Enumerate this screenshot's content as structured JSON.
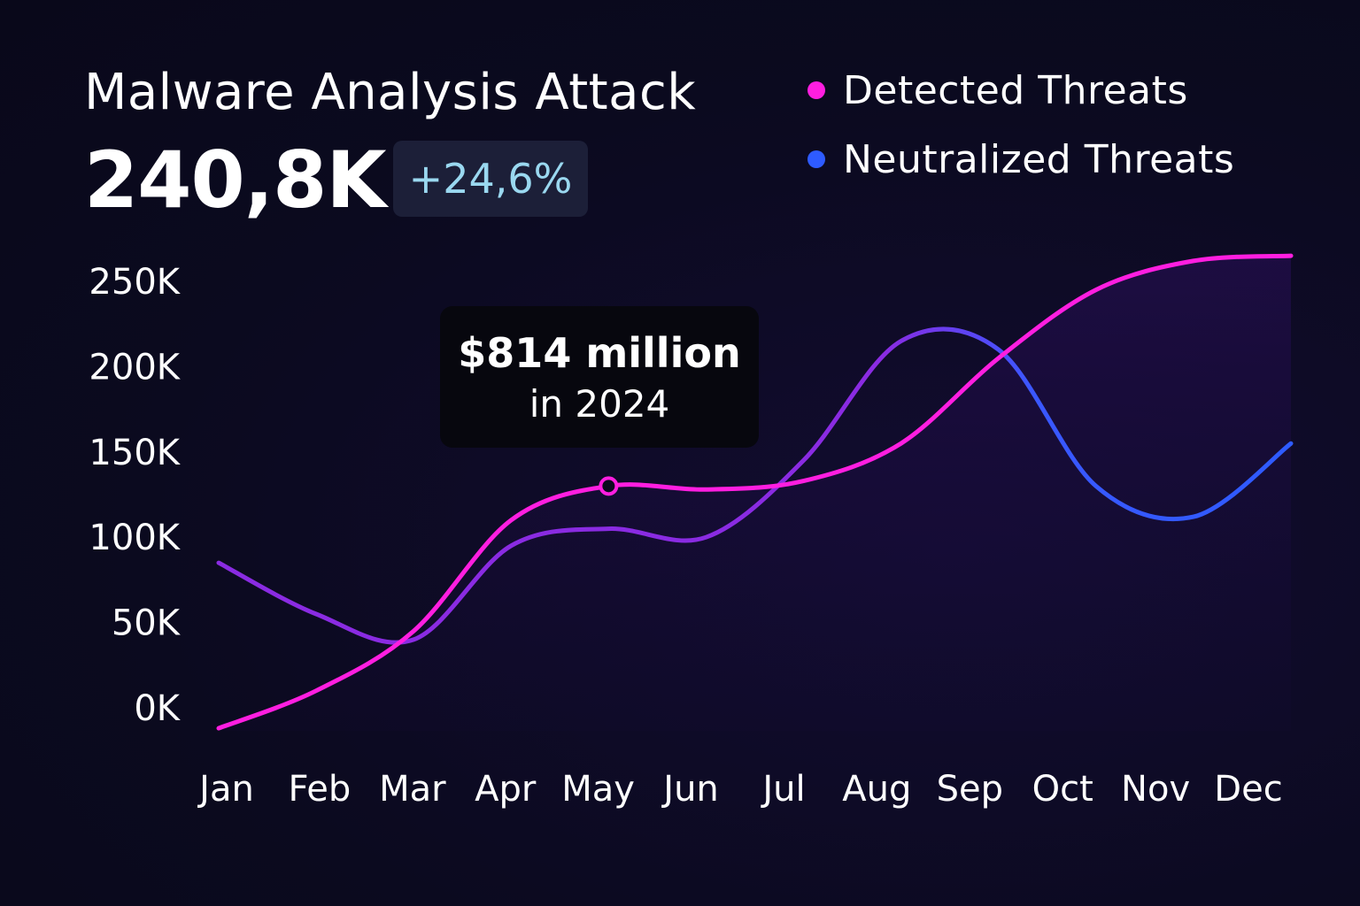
{
  "header": {
    "title": "Malware Analysis Attack",
    "total": "240,8K",
    "change": "+24,6%"
  },
  "callout": {
    "value": "$814 million",
    "subtitle": "in 2024",
    "month": "May"
  },
  "colors": {
    "detected": "#ff1ee0",
    "neutralized_start": "#8a2be2",
    "neutralized_end": "#2e5bff",
    "badge_text": "#9ad8f0"
  },
  "chart_data": {
    "type": "line",
    "categories": [
      "Jan",
      "Feb",
      "Mar",
      "Apr",
      "May",
      "Jun",
      "Jul",
      "Aug",
      "Sep",
      "Oct",
      "Nov",
      "Dec"
    ],
    "yticks": [
      "0K",
      "50K",
      "100K",
      "150K",
      "200K",
      "250K"
    ],
    "ylim": [
      0,
      250000
    ],
    "grid": false,
    "legend_position": "top-right",
    "series": [
      {
        "name": "Detected Threats",
        "color": "#ff1ee0",
        "values": [
          -12000,
          10000,
          45000,
          110000,
          130000,
          128000,
          133000,
          155000,
          205000,
          245000,
          262000,
          265000
        ]
      },
      {
        "name": "Neutralized Threats",
        "color": "#7a3cff",
        "values": [
          85000,
          55000,
          40000,
          95000,
          105000,
          100000,
          145000,
          215000,
          210000,
          130000,
          112000,
          155000
        ]
      }
    ]
  }
}
